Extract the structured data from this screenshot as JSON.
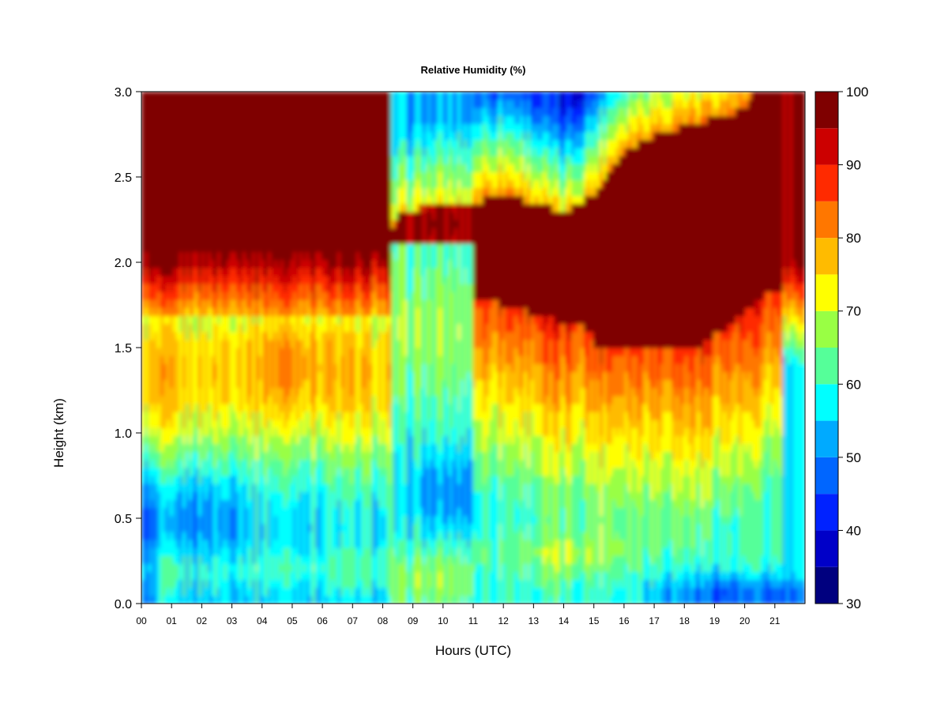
{
  "chart_data": {
    "type": "heatmap",
    "title": "Relative Humidity (%)",
    "xlabel": "Hours (UTC)",
    "ylabel": "Height (km)",
    "x_ticks": [
      "00",
      "01",
      "02",
      "03",
      "04",
      "05",
      "06",
      "07",
      "08",
      "09",
      "10",
      "11",
      "12",
      "13",
      "14",
      "15",
      "16",
      "17",
      "18",
      "19",
      "20",
      "21"
    ],
    "y_ticks": [
      "0.0",
      "0.5",
      "1.0",
      "1.5",
      "2.0",
      "2.5",
      "3.0"
    ],
    "xlim": [
      0,
      22
    ],
    "ylim": [
      0,
      3
    ],
    "colorbar": {
      "ticks": [
        "30",
        "40",
        "50",
        "60",
        "70",
        "80",
        "90",
        "100"
      ],
      "range": [
        30,
        100
      ],
      "levels": [
        30,
        35,
        40,
        45,
        50,
        55,
        60,
        65,
        70,
        75,
        80,
        85,
        90,
        95,
        100
      ],
      "colors": [
        "#00007F",
        "#0000C8",
        "#0022FF",
        "#0066FF",
        "#00AAFF",
        "#00FFFF",
        "#55FF99",
        "#99FF44",
        "#FFFF00",
        "#FFBB00",
        "#FF7700",
        "#FF2A00",
        "#CC0000",
        "#7F0000"
      ]
    },
    "grid": false
  }
}
